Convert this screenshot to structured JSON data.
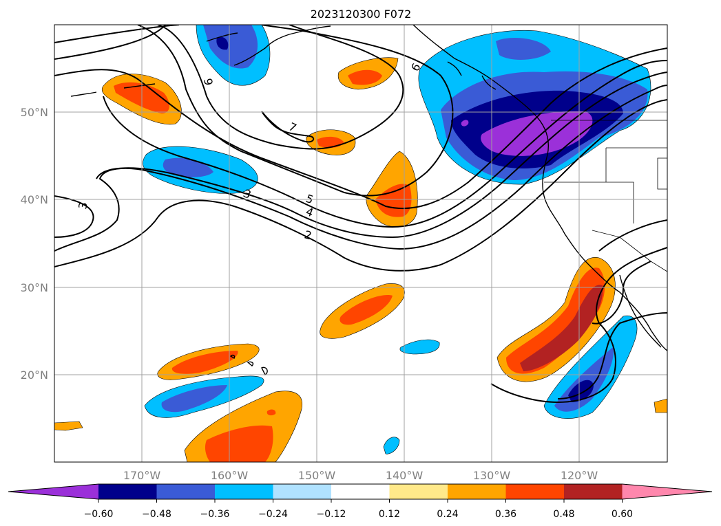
{
  "title": "2023120300 F072",
  "lat_labels": [
    "50°N",
    "40°N",
    "30°N",
    "20°N"
  ],
  "lon_labels": [
    "170°W",
    "160°W",
    "150°W",
    "140°W",
    "130°W",
    "120°W"
  ],
  "contour_labels": [
    "9",
    "6",
    "7",
    "5",
    "4",
    "3",
    "2",
    "3"
  ],
  "colorbar": {
    "ticks": [
      "−0.60",
      "−0.48",
      "−0.36",
      "−0.24",
      "−0.12",
      "0.12",
      "0.24",
      "0.36",
      "0.48",
      "0.60"
    ],
    "colors": [
      "#9b30d9",
      "#00008b",
      "#3a5bd6",
      "#00bfff",
      "#b0e2ff",
      "#ffffff",
      "#ffe98a",
      "#ffa500",
      "#ff4500",
      "#b22222",
      "#ff87ad"
    ]
  },
  "chart_data": {
    "type": "heatmap",
    "title": "2023120300 F072",
    "lat_range": [
      10,
      60
    ],
    "lon_range": [
      -180,
      -110
    ],
    "levels": [
      -0.6,
      -0.48,
      -0.36,
      -0.24,
      -0.12,
      0.12,
      0.24,
      0.36,
      0.48,
      0.6
    ],
    "grid": true
  }
}
